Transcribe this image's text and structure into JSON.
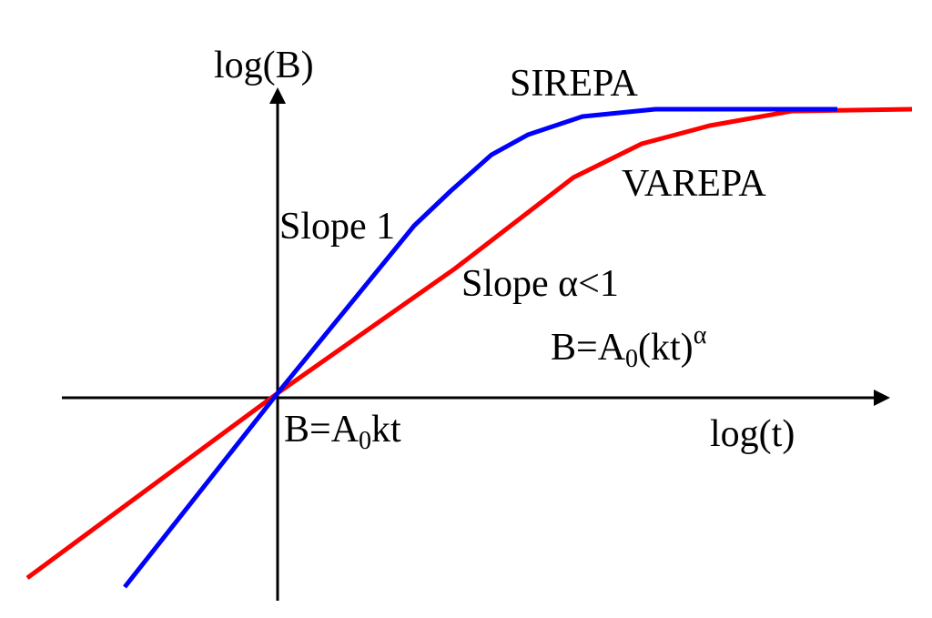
{
  "axes": {
    "y_label": "log(B)",
    "x_label": "log(t)"
  },
  "curves": [
    {
      "label": "SIREPA",
      "slope_label": "Slope 1"
    },
    {
      "label": "VAREPA",
      "slope_label": "Slope α<1"
    }
  ],
  "equations": [
    {
      "base": "B=A",
      "sub": "0",
      "rest": "(kt)",
      "sup": "α"
    },
    {
      "base": "B=A",
      "sub": "0",
      "rest": "kt"
    }
  ]
}
